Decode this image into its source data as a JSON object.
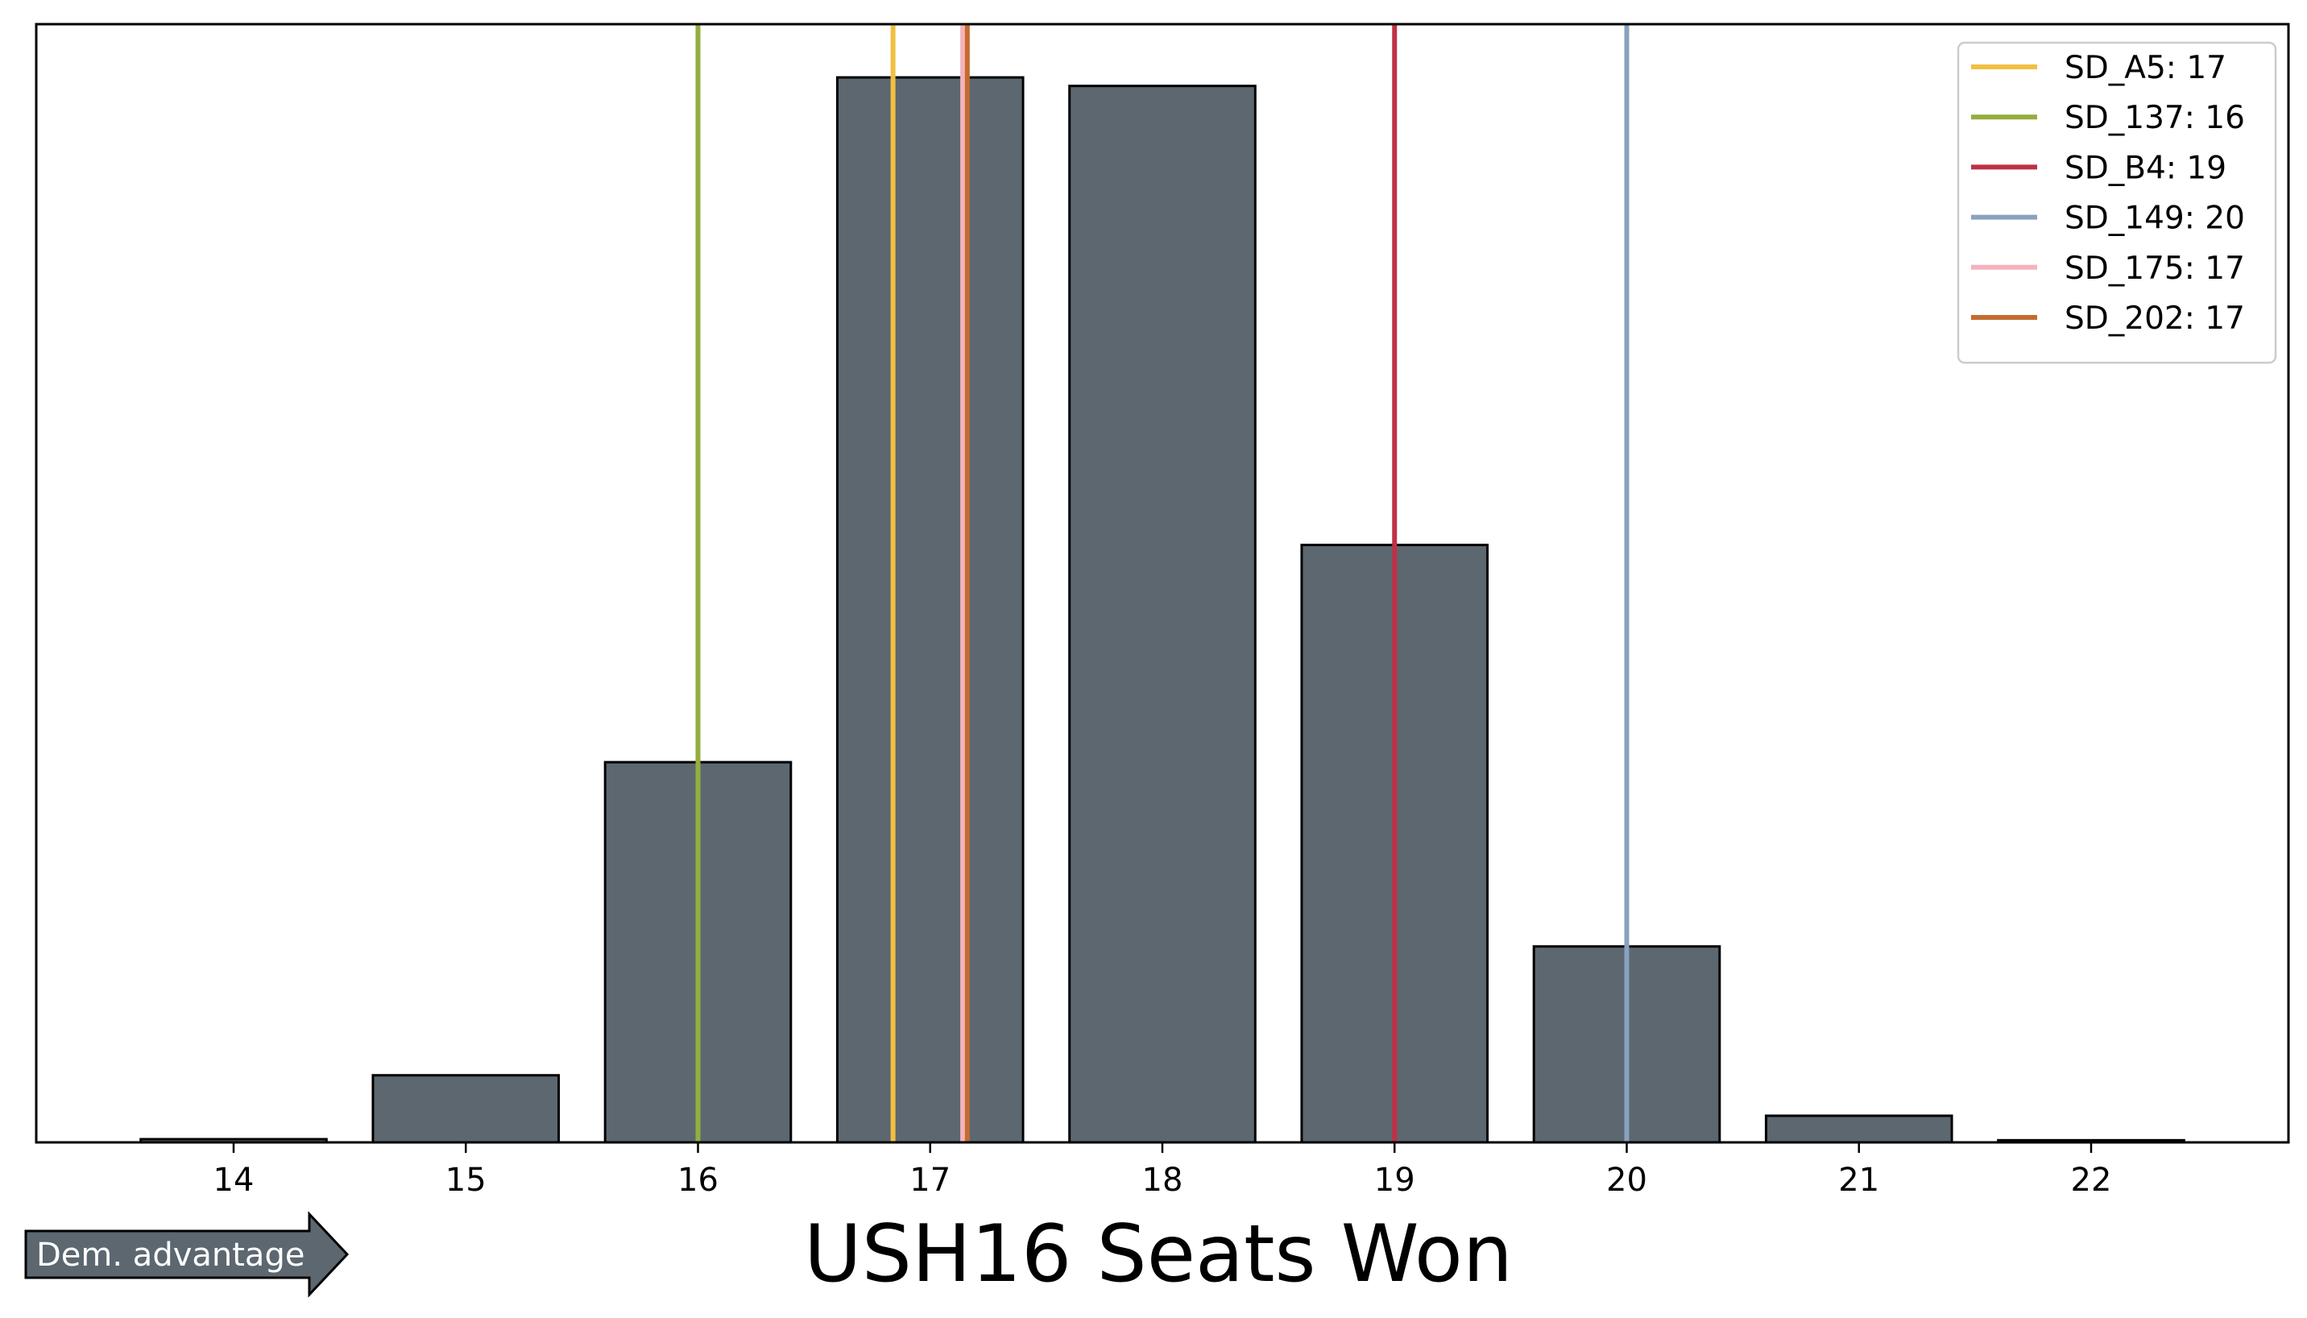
{
  "chart_data": {
    "type": "bar",
    "xlabel": "USH16 Seats Won",
    "ylabel": "",
    "categories": [
      "14",
      "15",
      "16",
      "17",
      "18",
      "19",
      "20",
      "21",
      "22"
    ],
    "x": [
      14,
      15,
      16,
      17,
      18,
      19,
      20,
      21,
      22
    ],
    "values": [
      0.3,
      6.3,
      35.7,
      100,
      99.2,
      56.1,
      18.4,
      2.5,
      0.2
    ],
    "ylim": [
      0,
      105
    ],
    "xlim": [
      13.15,
      22.85
    ],
    "grid": false,
    "bar_color": "#5c6770",
    "reference_lines": [
      {
        "name": "SD_A5: 17",
        "x": 16.84,
        "color": "#f0c040"
      },
      {
        "name": "SD_137: 16",
        "x": 16.0,
        "color": "#93ae3e"
      },
      {
        "name": "SD_B4: 19",
        "x": 19.0,
        "color": "#be3145"
      },
      {
        "name": "SD_149: 20",
        "x": 20.0,
        "color": "#8aa1bf"
      },
      {
        "name": "SD_175: 17",
        "x": 17.14,
        "color": "#f4b3bc"
      },
      {
        "name": "SD_202: 17",
        "x": 17.16,
        "color": "#c46b30"
      }
    ],
    "legend_position": "top-right",
    "annotation": "Dem. advantage"
  }
}
